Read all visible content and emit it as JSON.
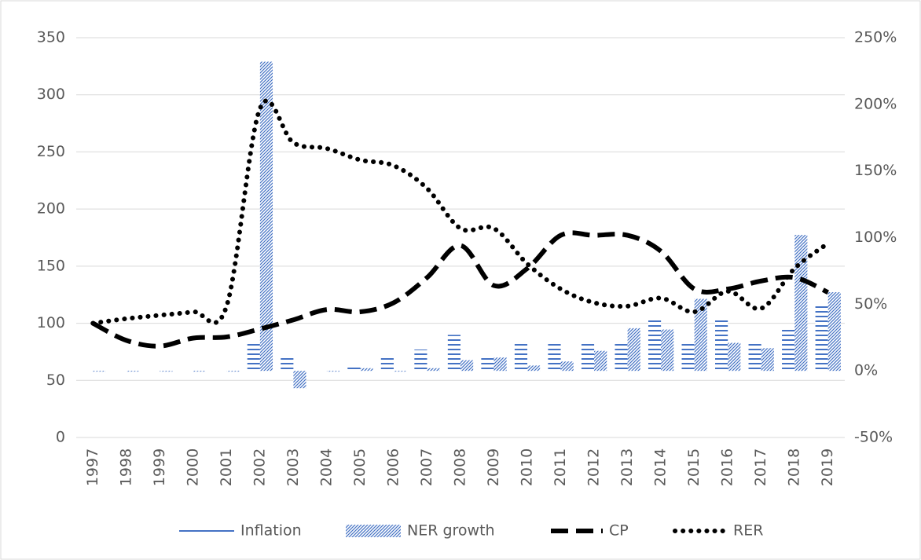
{
  "chart_data": {
    "type": "combo",
    "categories": [
      "1997",
      "1998",
      "1999",
      "2000",
      "2001",
      "2002",
      "2003",
      "2004",
      "2005",
      "2006",
      "2007",
      "2008",
      "2009",
      "2010",
      "2011",
      "2012",
      "2013",
      "2014",
      "2015",
      "2016",
      "2017",
      "2018",
      "2019"
    ],
    "series": [
      {
        "name": "Inflation",
        "type": "bar",
        "axis": "y2",
        "color": "#4472c4",
        "values": [
          0,
          0,
          1,
          1,
          1,
          22,
          11,
          1,
          4,
          10,
          16,
          27,
          10,
          21,
          21,
          21,
          21,
          38,
          21,
          38,
          21,
          32,
          49
        ]
      },
      {
        "name": "NER growth",
        "type": "bar",
        "axis": "y2",
        "color": "#4472c4",
        "values": [
          0,
          0,
          0,
          0,
          0,
          232,
          -13,
          0,
          2,
          0,
          2,
          8,
          10,
          4,
          7,
          15,
          32,
          31,
          54,
          21,
          17,
          102,
          59
        ]
      },
      {
        "name": "CP",
        "type": "line",
        "color": "#000000",
        "values": [
          100,
          85,
          80,
          87,
          88,
          95,
          103,
          112,
          110,
          118,
          140,
          168,
          133,
          148,
          177,
          177,
          177,
          163,
          130,
          130,
          137,
          140,
          127
        ]
      },
      {
        "name": "RER",
        "type": "line",
        "color": "#000000",
        "values": [
          100,
          104,
          107,
          110,
          115,
          288,
          258,
          253,
          243,
          238,
          218,
          183,
          183,
          152,
          130,
          118,
          115,
          122,
          110,
          128,
          113,
          148,
          170
        ]
      }
    ],
    "ylim": [
      0,
      350
    ],
    "yticks": [
      0,
      50,
      100,
      150,
      200,
      250,
      300,
      350
    ],
    "y2lim": [
      -50,
      250
    ],
    "y2ticks": [
      {
        "value": -50,
        "label": "-50%"
      },
      {
        "value": 0,
        "label": "0%"
      },
      {
        "value": 50,
        "label": "50%"
      },
      {
        "value": 100,
        "label": "100%"
      },
      {
        "value": 150,
        "label": "150%"
      },
      {
        "value": 200,
        "label": "200%"
      },
      {
        "value": 250,
        "label": "250%"
      }
    ],
    "grid": true,
    "legend": "bottom"
  }
}
